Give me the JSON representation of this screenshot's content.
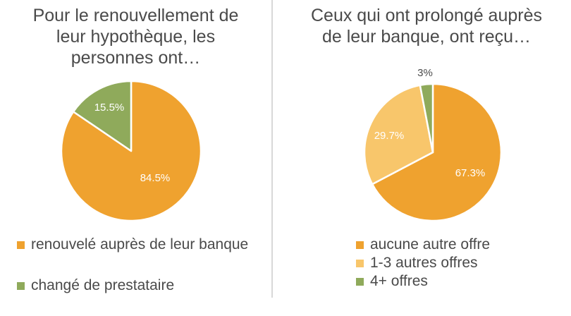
{
  "chart_data": [
    {
      "type": "pie",
      "title_lines": [
        "Pour le renouvellement de",
        "leur hypothèque, les",
        "personnes ont…"
      ],
      "slices": [
        {
          "label": "renouvelé auprès de leur banque",
          "value": 84.5,
          "display": "84.5%",
          "color": "#EFA22F"
        },
        {
          "label": "changé de prestataire",
          "value": 15.5,
          "display": "15.5%",
          "color": "#8FAA5B"
        }
      ],
      "legend_position": "bottom"
    },
    {
      "type": "pie",
      "title_lines": [
        "Ceux qui ont prolongé auprès",
        "de leur banque, ont reçu…"
      ],
      "slices": [
        {
          "label": "aucune autre offre",
          "value": 67.3,
          "display": "67.3%",
          "color": "#EFA22F"
        },
        {
          "label": "1-3 autres offres",
          "value": 29.7,
          "display": "29.7%",
          "color": "#F8C66B"
        },
        {
          "label": "4+ offres",
          "value": 3,
          "display": "3%",
          "color": "#8FAA5B"
        }
      ],
      "legend_position": "bottom"
    }
  ]
}
